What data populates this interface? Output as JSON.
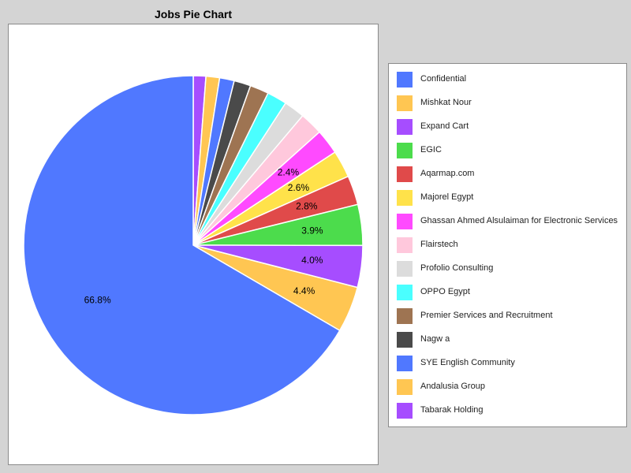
{
  "chart_data": {
    "type": "pie",
    "title": "Jobs Pie Chart",
    "slices": [
      {
        "name": "Confidential",
        "value": 66.8,
        "label": "66.8%",
        "color": "#5078ff"
      },
      {
        "name": "Mishkat Nour",
        "value": 4.4,
        "label": "4.4%",
        "color": "#ffc652"
      },
      {
        "name": "Expand Cart",
        "value": 4.0,
        "label": "4.0%",
        "color": "#a64dff"
      },
      {
        "name": "EGIC",
        "value": 3.9,
        "label": "3.9%",
        "color": "#4cdc4c"
      },
      {
        "name": "Aqarmap.com",
        "value": 2.8,
        "label": "2.8%",
        "color": "#e04a4a"
      },
      {
        "name": "Majorel Egypt",
        "value": 2.6,
        "label": "2.6%",
        "color": "#ffe24a"
      },
      {
        "name": "Ghassan Ahmed Alsulaiman for Electronic Services",
        "value": 2.4,
        "label": "2.4%",
        "color": "#ff4aff"
      },
      {
        "name": "Flairstech",
        "value": 2.2,
        "label": "",
        "color": "#ffc8dc"
      },
      {
        "name": "Profolio Consulting",
        "value": 2.0,
        "label": "",
        "color": "#dcdcdc"
      },
      {
        "name": "OPPO Egypt",
        "value": 1.9,
        "label": "",
        "color": "#4affff"
      },
      {
        "name": "Premier Services and Recruitment",
        "value": 1.8,
        "label": "",
        "color": "#9e7452"
      },
      {
        "name": "Nagw a",
        "value": 1.6,
        "label": "",
        "color": "#4a4a4a"
      },
      {
        "name": "SYE English Community",
        "value": 1.4,
        "label": "",
        "color": "#5078ff"
      },
      {
        "name": "Andalusia Group",
        "value": 1.3,
        "label": "",
        "color": "#ffc652"
      },
      {
        "name": "Tabarak Holding",
        "value": 1.2,
        "label": "",
        "color": "#a64dff"
      }
    ],
    "start_angle": "12 o'clock",
    "direction": "clockwise",
    "legend_position": "right"
  }
}
